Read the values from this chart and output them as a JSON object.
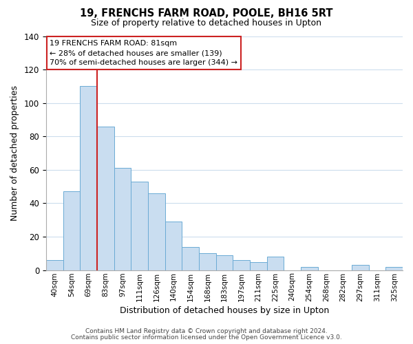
{
  "title": "19, FRENCHS FARM ROAD, POOLE, BH16 5RT",
  "subtitle": "Size of property relative to detached houses in Upton",
  "xlabel": "Distribution of detached houses by size in Upton",
  "ylabel": "Number of detached properties",
  "bar_labels": [
    "40sqm",
    "54sqm",
    "69sqm",
    "83sqm",
    "97sqm",
    "111sqm",
    "126sqm",
    "140sqm",
    "154sqm",
    "168sqm",
    "183sqm",
    "197sqm",
    "211sqm",
    "225sqm",
    "240sqm",
    "254sqm",
    "268sqm",
    "282sqm",
    "297sqm",
    "311sqm",
    "325sqm"
  ],
  "bar_values": [
    6,
    47,
    110,
    86,
    61,
    53,
    46,
    29,
    14,
    10,
    9,
    6,
    5,
    8,
    0,
    2,
    0,
    0,
    3,
    0,
    2
  ],
  "bar_color": "#c9ddf0",
  "bar_edge_color": "#6aaad4",
  "vline_color": "#cc2222",
  "ylim": [
    0,
    140
  ],
  "annotation_line1": "19 FRENCHS FARM ROAD: 81sqm",
  "annotation_line2": "← 28% of detached houses are smaller (139)",
  "annotation_line3": "70% of semi-detached houses are larger (344) →",
  "footer1": "Contains HM Land Registry data © Crown copyright and database right 2024.",
  "footer2": "Contains public sector information licensed under the Open Government Licence v3.0.",
  "background_color": "#ffffff",
  "grid_color": "#ccdded"
}
